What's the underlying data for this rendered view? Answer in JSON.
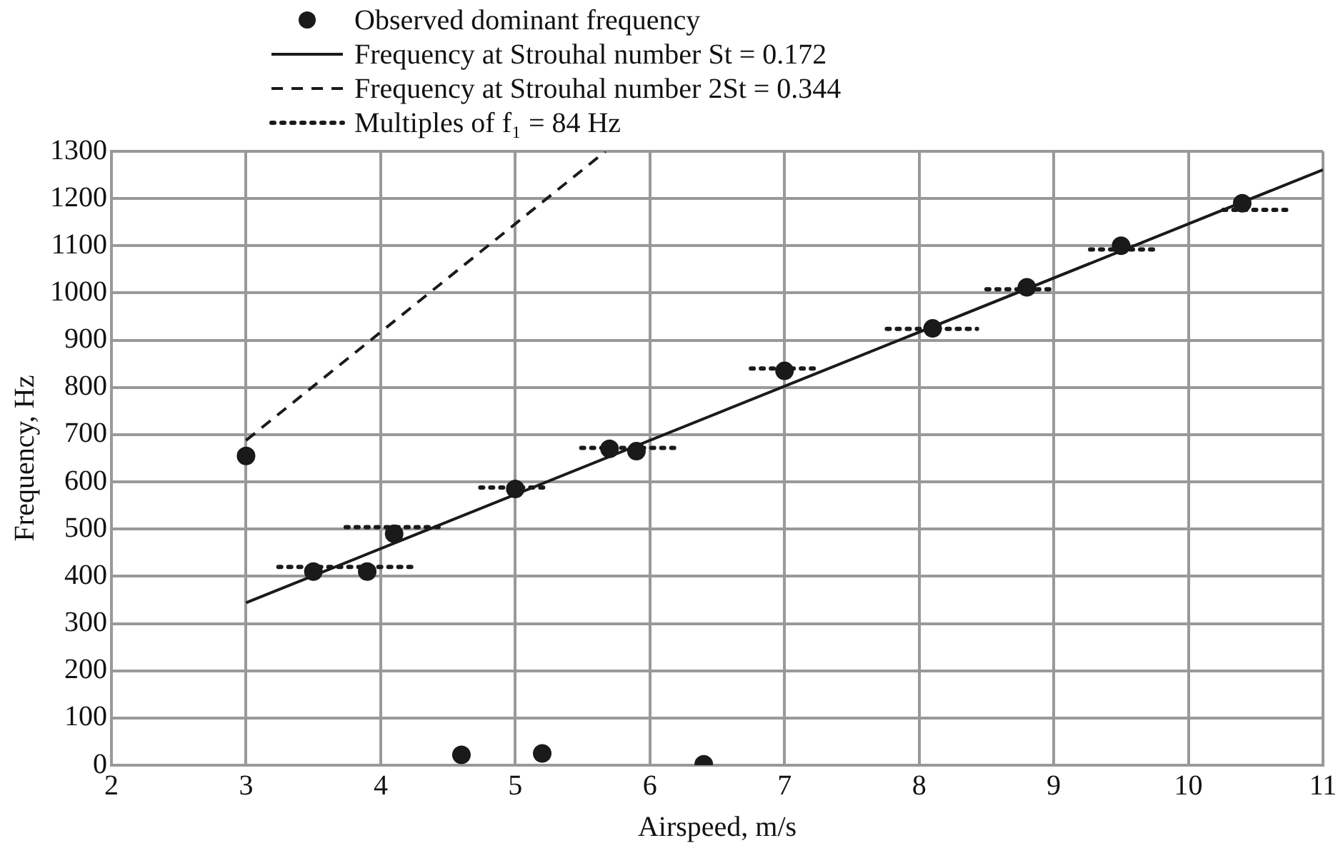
{
  "chart_data": {
    "type": "scatter",
    "xlabel": "Airspeed, m/s",
    "ylabel": "Frequency, Hz",
    "xlim": [
      2,
      11
    ],
    "xticks": [
      2,
      3,
      4,
      5,
      6,
      7,
      8,
      9,
      10,
      11
    ],
    "ylim": [
      0,
      1300
    ],
    "yticks": [
      0,
      100,
      200,
      300,
      400,
      500,
      600,
      700,
      800,
      900,
      1000,
      1100,
      1200,
      1300
    ],
    "grid": true,
    "legend": "top",
    "series": [
      {
        "name": "Observed dominant frequency",
        "type": "scatter",
        "marker": "circle",
        "color": "#1a1a1a",
        "x": [
          3,
          3.5,
          3.9,
          4.1,
          4.6,
          5,
          5.2,
          5.7,
          5.9,
          6.4,
          7,
          8.1,
          8.8,
          9.5,
          10.4
        ],
        "values": [
          655,
          410,
          410,
          490,
          22,
          585,
          25,
          670,
          665,
          2,
          835,
          925,
          1012,
          1100,
          1190
        ]
      },
      {
        "name": "Frequency at Strouhal number St = 0.172",
        "type": "line",
        "marker": "none",
        "line_style": "solid",
        "color": "#1a1a1a",
        "x": [
          3,
          11
        ],
        "values": [
          344,
          1261
        ]
      },
      {
        "name": "Frequency at Strouhal number 2St = 0.344",
        "type": "line",
        "marker": "none",
        "line_style": "dashed",
        "color": "#1a1a1a",
        "x": [
          3,
          5.67
        ],
        "values": [
          688,
          1300
        ]
      },
      {
        "name": "Multiples of f₁ = 84 Hz",
        "type": "line",
        "marker": "none",
        "line_style": "dotted",
        "color": "#1a1a1a",
        "x": [
          3.24,
          4.24
        ],
        "values": [
          420,
          420
        ]
      },
      {
        "type": "line",
        "marker": "none",
        "line_style": "dotted",
        "color": "#1a1a1a",
        "x": [
          3.74,
          4.44
        ],
        "values": [
          504,
          504
        ]
      },
      {
        "type": "line",
        "marker": "none",
        "line_style": "dotted",
        "color": "#1a1a1a",
        "x": [
          4.74,
          5.26
        ],
        "values": [
          588,
          588
        ]
      },
      {
        "type": "line",
        "marker": "none",
        "line_style": "dotted",
        "color": "#1a1a1a",
        "x": [
          5.49,
          6.2
        ],
        "values": [
          672,
          672
        ]
      },
      {
        "type": "line",
        "marker": "none",
        "line_style": "dotted",
        "color": "#1a1a1a",
        "x": [
          6.75,
          7.26
        ],
        "values": [
          840,
          840
        ]
      },
      {
        "type": "line",
        "marker": "none",
        "line_style": "dotted",
        "color": "#1a1a1a",
        "x": [
          7.76,
          8.43
        ],
        "values": [
          924,
          924
        ]
      },
      {
        "type": "line",
        "marker": "none",
        "line_style": "dotted",
        "color": "#1a1a1a",
        "x": [
          8.5,
          9.02
        ],
        "values": [
          1008,
          1008
        ]
      },
      {
        "type": "line",
        "marker": "none",
        "line_style": "dotted",
        "color": "#1a1a1a",
        "x": [
          9.27,
          9.77
        ],
        "values": [
          1092,
          1092
        ]
      },
      {
        "type": "line",
        "marker": "none",
        "line_style": "dotted",
        "color": "#1a1a1a",
        "x": [
          10.26,
          10.78
        ],
        "values": [
          1176,
          1176
        ]
      }
    ]
  }
}
